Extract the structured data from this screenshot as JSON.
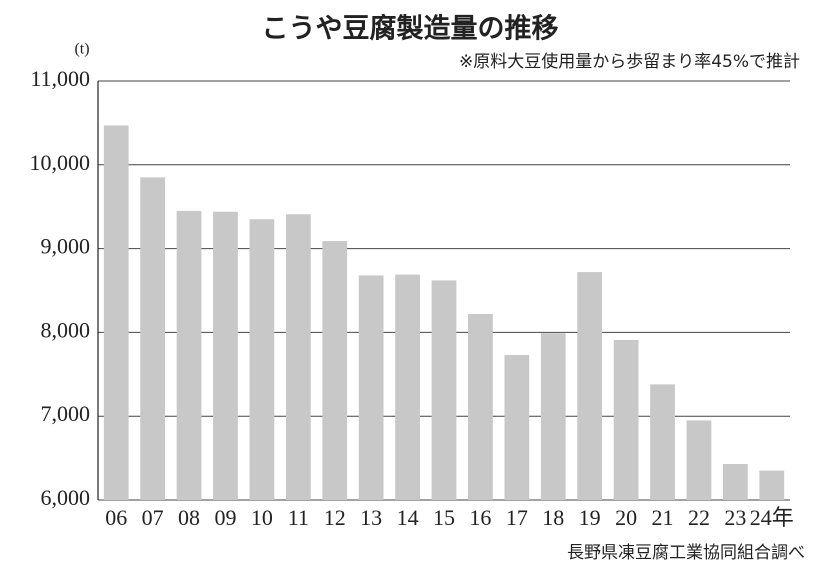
{
  "chart_data": {
    "type": "bar",
    "title": "こうや豆腐製造量の推移",
    "subtitle": "※原料大豆使用量から歩留まり率45%で推計",
    "y_unit": "(t)",
    "source": "長野県凍豆腐工業協同組合調べ",
    "categories": [
      "06",
      "07",
      "08",
      "09",
      "10",
      "11",
      "12",
      "13",
      "14",
      "15",
      "16",
      "17",
      "18",
      "19",
      "20",
      "21",
      "22",
      "23",
      "24年"
    ],
    "values": [
      10470,
      9850,
      9450,
      9440,
      9350,
      9410,
      9090,
      8680,
      8690,
      8620,
      8220,
      7730,
      7990,
      8720,
      7910,
      7380,
      6950,
      6430,
      6350
    ],
    "color": "#c8c8c8",
    "ylim": [
      6000,
      11000
    ],
    "yticks": [
      {
        "value": 6000,
        "label": "6,000"
      },
      {
        "value": 7000,
        "label": "7,000"
      },
      {
        "value": 8000,
        "label": "8,000"
      },
      {
        "value": 9000,
        "label": "9,000"
      },
      {
        "value": 10000,
        "label": "10,000"
      },
      {
        "value": 11000,
        "label": "11,000"
      }
    ],
    "grid": true
  }
}
